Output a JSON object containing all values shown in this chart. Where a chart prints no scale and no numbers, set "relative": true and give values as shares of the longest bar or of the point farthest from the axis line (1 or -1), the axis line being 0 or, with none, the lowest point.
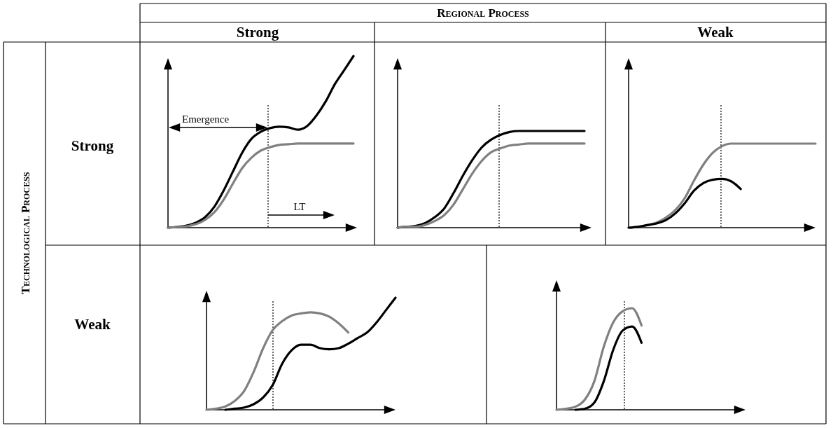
{
  "chart_data": [
    {
      "type": "other",
      "annotations": [
        "Regional Process",
        "Strong",
        "Weak",
        "Technological Process",
        "Strong",
        "Weak"
      ]
    },
    {
      "type": "line",
      "relative": true,
      "categories": [
        null,
        null,
        null,
        null,
        null,
        null,
        null,
        null,
        null,
        null,
        null,
        null,
        null,
        null,
        null,
        null,
        null,
        null,
        null,
        null,
        null
      ],
      "series": [
        {
          "color": "#000000",
          "values": [
            0,
            0.004,
            0.012,
            0.029,
            0.061,
            0.122,
            0.216,
            0.327,
            0.437,
            0.518,
            0.559,
            0.58,
            0.588,
            0.584,
            0.571,
            0.592,
            0.653,
            0.735,
            0.837,
            0.918,
            1
          ]
        },
        {
          "color": "#808080",
          "values": [
            0,
            0.004,
            0.008,
            0.02,
            0.045,
            0.09,
            0.163,
            0.257,
            0.347,
            0.408,
            0.449,
            0.469,
            0.482,
            0.486,
            0.49,
            0.49,
            0.49,
            0.49,
            0.49,
            0.49,
            0.49
          ]
        }
      ],
      "annotations": [
        "Emergence",
        "LT"
      ]
    },
    {
      "type": "line",
      "relative": true,
      "categories": [
        null,
        null,
        null,
        null,
        null,
        null,
        null,
        null,
        null,
        null,
        null,
        null,
        null,
        null,
        null,
        null,
        null,
        null,
        null,
        null,
        null
      ],
      "series": [
        {
          "color": "#000000",
          "values": [
            0,
            0.01,
            0.02,
            0.05,
            0.11,
            0.2,
            0.36,
            0.54,
            0.7,
            0.83,
            0.91,
            0.96,
            0.99,
            1,
            1,
            1,
            1,
            1,
            1,
            1,
            1
          ]
        },
        {
          "color": "#808080",
          "values": [
            0,
            0.01,
            0.01,
            0.03,
            0.07,
            0.13,
            0.24,
            0.4,
            0.56,
            0.69,
            0.78,
            0.82,
            0.85,
            0.86,
            0.87,
            0.87,
            0.87,
            0.87,
            0.87,
            0.87,
            0.87
          ]
        }
      ]
    },
    {
      "type": "line",
      "relative": true,
      "categories": [
        null,
        null,
        null,
        null,
        null,
        null,
        null,
        null,
        null,
        null,
        null,
        null,
        null,
        null,
        null,
        null,
        null,
        null,
        null,
        null,
        null
      ],
      "series": [
        {
          "color": "#808080",
          "values": [
            0,
            0.01,
            0.03,
            0.06,
            0.12,
            0.21,
            0.35,
            0.56,
            0.75,
            0.89,
            0.97,
            1,
            1,
            1,
            1,
            1,
            1,
            1,
            1,
            1,
            1
          ]
        },
        {
          "color": "#000000",
          "values": [
            0,
            0.01,
            0.03,
            0.05,
            0.09,
            0.17,
            0.29,
            0.44,
            0.53,
            0.57,
            0.58,
            0.55,
            0.46,
            null,
            null,
            null,
            null,
            null,
            null,
            null,
            null
          ]
        }
      ]
    },
    {
      "type": "line",
      "relative": true,
      "categories": [
        null,
        null,
        null,
        null,
        null,
        null,
        null,
        null,
        null,
        null,
        null,
        null,
        null,
        null,
        null,
        null,
        null,
        null,
        null,
        null,
        null
      ],
      "series": [
        {
          "color": "#808080",
          "values": [
            0,
            0.01,
            0.03,
            0.08,
            0.17,
            0.34,
            0.55,
            0.71,
            0.79,
            0.84,
            0.86,
            0.87,
            0.86,
            0.83,
            0.77,
            0.69,
            null,
            null,
            null,
            null,
            null
          ]
        },
        {
          "color": "#000000",
          "values": [
            null,
            null,
            0,
            0.01,
            0.02,
            0.05,
            0.11,
            0.22,
            0.41,
            0.53,
            0.58,
            0.58,
            0.55,
            0.54,
            0.55,
            0.59,
            0.64,
            0.69,
            0.78,
            0.89,
            1
          ]
        }
      ]
    },
    {
      "type": "line",
      "relative": true,
      "categories": [
        null,
        null,
        null,
        null,
        null,
        null,
        null,
        null,
        null,
        null,
        null,
        null,
        null,
        null,
        null,
        null,
        null,
        null,
        null,
        null,
        null
      ],
      "series": [
        {
          "color": "#808080",
          "values": [
            0,
            0.01,
            0.03,
            0.1,
            0.28,
            0.62,
            0.86,
            0.97,
            1,
            0.83,
            null,
            null,
            null,
            null,
            null,
            null,
            null,
            null,
            null,
            null,
            null
          ]
        },
        {
          "color": "#000000",
          "values": [
            null,
            null,
            0,
            0.01,
            0.07,
            0.28,
            0.59,
            0.78,
            0.82,
            0.66,
            null,
            null,
            null,
            null,
            null,
            null,
            null,
            null,
            null,
            null,
            null
          ]
        }
      ]
    }
  ]
}
